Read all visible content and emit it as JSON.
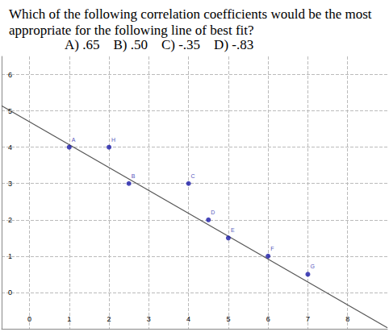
{
  "chart_data": {
    "type": "scatter",
    "title": "Which of the following correlation coefficients would be the most appropriate for the following line of best fit?",
    "subtitle": "A) .65    B) .50    C) -.35    D) -.83",
    "x": [
      1,
      2,
      2.5,
      4,
      4.5,
      5,
      6,
      7
    ],
    "values": [
      4,
      4,
      3,
      3,
      2,
      1.5,
      1,
      0.5
    ],
    "point_labels": [
      "A",
      "H",
      "B",
      "C",
      "D",
      "E",
      "F",
      "G"
    ],
    "color": "#1a1aa8",
    "fit_line": {
      "x": [
        -0.7,
        9
      ],
      "values": [
        5.14,
        -0.97
      ],
      "color": "#555555"
    },
    "xlim": [
      -0.7,
      9
    ],
    "ylim": [
      -1,
      6.5
    ],
    "xticks": [
      0,
      1,
      2,
      3,
      4,
      5,
      6,
      7,
      8
    ],
    "yticks": [
      0,
      1,
      2,
      3,
      4,
      5,
      6
    ],
    "grid": true
  }
}
